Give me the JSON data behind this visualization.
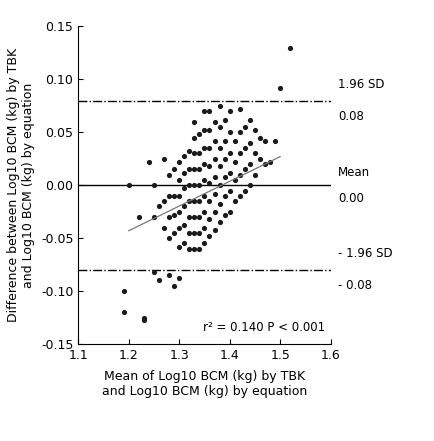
{
  "title": "",
  "xlabel": "Mean of Log10 BCM (kg) by TBK\nand Log10 BCM (kg) by equation",
  "ylabel": "Difference between Log10 BCM (kg) by TBK\nand Log10 BCM (kg) by equation",
  "xlim": [
    1.1,
    1.6
  ],
  "ylim": [
    -0.15,
    0.15
  ],
  "xticks": [
    1.1,
    1.2,
    1.3,
    1.4,
    1.5,
    1.6
  ],
  "yticks": [
    -0.15,
    -0.1,
    -0.05,
    0.0,
    0.05,
    0.1,
    0.15
  ],
  "mean_line": 0.0,
  "upper_sd_line": 0.08,
  "lower_sd_line": -0.08,
  "upper_sd_label": "1.96 SD",
  "upper_val_label": "0.08",
  "mean_label": "Mean",
  "mean_val_label": "0.00",
  "lower_sd_label": "- 1.96 SD",
  "lower_val_label": "- 0.08",
  "annotation": "r² = 0.140 P < 0.001",
  "trend_x": [
    1.2,
    1.5
  ],
  "trend_y": [
    -0.043,
    0.027
  ],
  "dot_color": "#1a1a1a",
  "dot_size": 14,
  "line_color": "#777777",
  "scatter_x": [
    1.19,
    1.2,
    1.22,
    1.23,
    1.24,
    1.25,
    1.25,
    1.26,
    1.27,
    1.27,
    1.27,
    1.28,
    1.28,
    1.28,
    1.28,
    1.29,
    1.29,
    1.29,
    1.29,
    1.3,
    1.3,
    1.3,
    1.3,
    1.3,
    1.3,
    1.31,
    1.31,
    1.31,
    1.31,
    1.31,
    1.31,
    1.32,
    1.32,
    1.32,
    1.32,
    1.32,
    1.32,
    1.32,
    1.33,
    1.33,
    1.33,
    1.33,
    1.33,
    1.33,
    1.33,
    1.33,
    1.33,
    1.34,
    1.34,
    1.34,
    1.34,
    1.34,
    1.34,
    1.34,
    1.34,
    1.35,
    1.35,
    1.35,
    1.35,
    1.35,
    1.35,
    1.35,
    1.35,
    1.35,
    1.36,
    1.36,
    1.36,
    1.36,
    1.36,
    1.36,
    1.36,
    1.36,
    1.37,
    1.37,
    1.37,
    1.37,
    1.37,
    1.37,
    1.37,
    1.38,
    1.38,
    1.38,
    1.38,
    1.38,
    1.38,
    1.38,
    1.39,
    1.39,
    1.39,
    1.39,
    1.39,
    1.39,
    1.4,
    1.4,
    1.4,
    1.4,
    1.4,
    1.4,
    1.41,
    1.41,
    1.41,
    1.41,
    1.42,
    1.42,
    1.42,
    1.42,
    1.42,
    1.43,
    1.43,
    1.43,
    1.43,
    1.44,
    1.44,
    1.44,
    1.44,
    1.45,
    1.45,
    1.45,
    1.46,
    1.46,
    1.47,
    1.47,
    1.48,
    1.49,
    1.5,
    1.52,
    1.19,
    1.23,
    1.25,
    1.26,
    1.28,
    1.29,
    1.3
  ],
  "scatter_y": [
    -0.12,
    0.0,
    -0.03,
    -0.125,
    0.022,
    -0.03,
    0.0,
    -0.02,
    -0.04,
    -0.015,
    0.025,
    -0.05,
    -0.03,
    -0.01,
    0.01,
    -0.045,
    -0.028,
    -0.01,
    0.015,
    -0.058,
    -0.04,
    -0.025,
    -0.01,
    0.005,
    0.022,
    -0.055,
    -0.038,
    -0.02,
    -0.003,
    0.012,
    0.028,
    -0.06,
    -0.045,
    -0.03,
    -0.015,
    0.0,
    0.015,
    0.032,
    -0.06,
    -0.045,
    -0.03,
    -0.015,
    0.0,
    0.015,
    0.03,
    0.045,
    0.06,
    -0.06,
    -0.045,
    -0.03,
    -0.015,
    0.0,
    0.015,
    0.03,
    0.048,
    -0.055,
    -0.04,
    -0.025,
    -0.01,
    0.005,
    0.02,
    0.035,
    0.052,
    0.07,
    -0.048,
    -0.032,
    -0.015,
    0.002,
    0.018,
    0.035,
    0.052,
    0.07,
    -0.042,
    -0.025,
    -0.008,
    0.008,
    0.025,
    0.042,
    0.06,
    -0.035,
    -0.018,
    0.0,
    0.018,
    0.035,
    0.055,
    0.075,
    -0.028,
    -0.01,
    0.008,
    0.025,
    0.042,
    0.062,
    -0.025,
    -0.005,
    0.012,
    0.03,
    0.05,
    0.07,
    -0.015,
    0.005,
    0.022,
    0.042,
    -0.01,
    0.01,
    0.03,
    0.05,
    0.072,
    -0.005,
    0.015,
    0.035,
    0.055,
    0.0,
    0.02,
    0.04,
    0.062,
    0.01,
    0.03,
    0.052,
    0.025,
    0.045,
    0.02,
    0.042,
    0.022,
    0.042,
    0.092,
    0.13,
    -0.1,
    -0.127,
    -0.082,
    -0.09,
    -0.085,
    -0.095,
    -0.088
  ],
  "background_color": "#ffffff",
  "tick_fontsize": 9,
  "label_fontsize": 9,
  "annotation_fontsize": 8.5
}
